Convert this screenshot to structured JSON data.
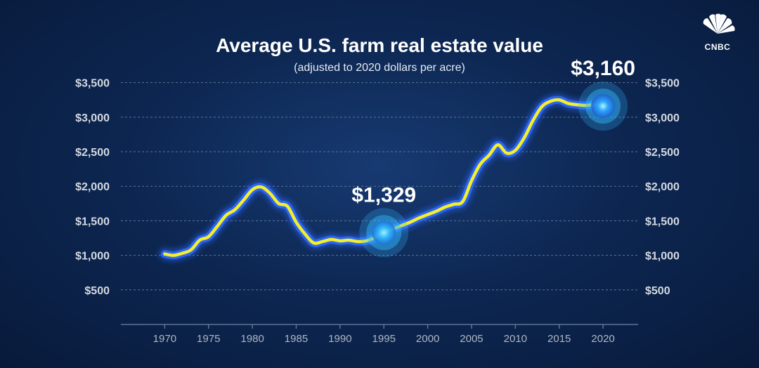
{
  "brand": {
    "logo_text": "CNBC",
    "logo_icon": "peacock-icon"
  },
  "colors": {
    "line": "#f5ef2a",
    "line_glow": "#2f6bff",
    "highlight": "#33b9ff",
    "background": "#0d2752"
  },
  "chart_data": {
    "type": "line",
    "title": "Average U.S. farm real estate value",
    "subtitle": "(adjusted to 2020 dollars per acre)",
    "xlabel": "",
    "ylabel": "",
    "xlim": [
      1965,
      2024
    ],
    "ylim": [
      0,
      3700
    ],
    "grid": true,
    "x_ticks": [
      "1970",
      "1975",
      "1980",
      "1985",
      "1990",
      "1995",
      "2000",
      "2005",
      "2010",
      "2015",
      "2020"
    ],
    "y_ticks": [
      "$500",
      "$1,000",
      "$1,500",
      "$2,000",
      "$2,500",
      "$3,000",
      "$3,500"
    ],
    "y_tick_values": [
      500,
      1000,
      1500,
      2000,
      2500,
      3000,
      3500
    ],
    "series": [
      {
        "x": [
          1970,
          1971,
          1972,
          1973,
          1974,
          1975,
          1976,
          1977,
          1978,
          1979,
          1980,
          1981,
          1982,
          1983,
          1984,
          1985,
          1986,
          1987,
          1988,
          1989,
          1990,
          1991,
          1992,
          1993,
          1994,
          1995,
          1996,
          1997,
          1998,
          1999,
          2000,
          2001,
          2002,
          2003,
          2004,
          2005,
          2006,
          2007,
          2008,
          2009,
          2010,
          2011,
          2012,
          2013,
          2014,
          2015,
          2016,
          2017,
          2018,
          2019,
          2020
        ],
        "y": [
          1020,
          1000,
          1030,
          1080,
          1220,
          1270,
          1420,
          1580,
          1660,
          1800,
          1950,
          1990,
          1900,
          1750,
          1710,
          1480,
          1310,
          1180,
          1200,
          1230,
          1210,
          1220,
          1200,
          1210,
          1260,
          1329,
          1380,
          1430,
          1480,
          1540,
          1590,
          1640,
          1700,
          1740,
          1780,
          2080,
          2320,
          2450,
          2600,
          2480,
          2520,
          2700,
          2950,
          3150,
          3230,
          3250,
          3200,
          3180,
          3170,
          3180,
          3160
        ]
      }
    ],
    "annotations": [
      {
        "x": 1995,
        "y": 1329,
        "label": "$1,329"
      },
      {
        "x": 2020,
        "y": 3160,
        "label": "$3,160"
      }
    ]
  }
}
